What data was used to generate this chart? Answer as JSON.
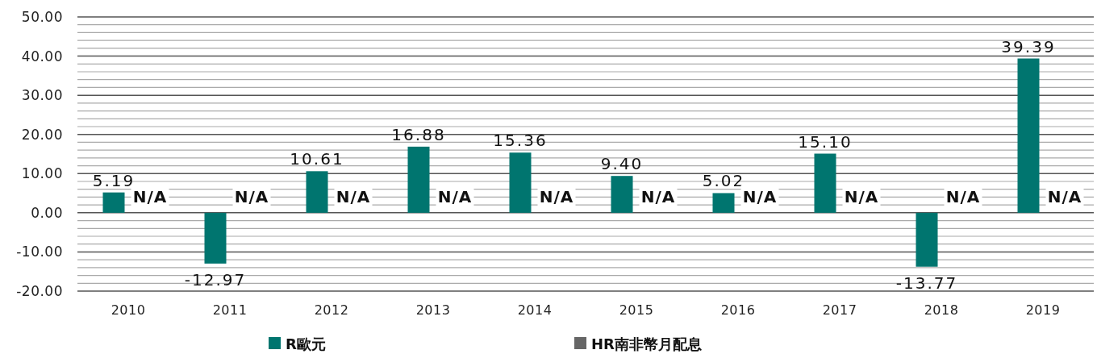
{
  "chart_data": {
    "type": "bar",
    "categories": [
      "2010",
      "2011",
      "2012",
      "2013",
      "2014",
      "2015",
      "2016",
      "2017",
      "2018",
      "2019"
    ],
    "series": [
      {
        "name": "R歐元",
        "color": "#00756f",
        "values": [
          5.19,
          -12.97,
          10.61,
          16.88,
          15.36,
          9.4,
          5.02,
          15.1,
          -13.77,
          39.39
        ],
        "value_labels": [
          "5.19",
          "-12.97",
          "10.61",
          "16.88",
          "15.36",
          "9.40",
          "5.02",
          "15.10",
          "-13.77",
          "39.39"
        ]
      },
      {
        "name": "HR南非幣月配息",
        "color": "#666666",
        "values": [
          null,
          null,
          null,
          null,
          null,
          null,
          null,
          null,
          null,
          null
        ],
        "value_labels": [
          "N/A",
          "N/A",
          "N/A",
          "N/A",
          "N/A",
          "N/A",
          "N/A",
          "N/A",
          "N/A",
          "N/A"
        ]
      }
    ],
    "ylim": [
      -20,
      50
    ],
    "yticks": [
      {
        "value": -20,
        "label": "-20.00"
      },
      {
        "value": -18,
        "label": null
      },
      {
        "value": -16,
        "label": null
      },
      {
        "value": -14,
        "label": null
      },
      {
        "value": -12,
        "label": null
      },
      {
        "value": -10,
        "label": "-10.00"
      },
      {
        "value": -8,
        "label": null
      },
      {
        "value": -6,
        "label": null
      },
      {
        "value": -4,
        "label": null
      },
      {
        "value": -2,
        "label": null
      },
      {
        "value": 0,
        "label": "0.00"
      },
      {
        "value": 2,
        "label": null
      },
      {
        "value": 4,
        "label": null
      },
      {
        "value": 6,
        "label": null
      },
      {
        "value": 8,
        "label": null
      },
      {
        "value": 10,
        "label": "10.00"
      },
      {
        "value": 12,
        "label": null
      },
      {
        "value": 14,
        "label": null
      },
      {
        "value": 16,
        "label": null
      },
      {
        "value": 18,
        "label": null
      },
      {
        "value": 20,
        "label": "20.00"
      },
      {
        "value": 22,
        "label": null
      },
      {
        "value": 24,
        "label": null
      },
      {
        "value": 26,
        "label": null
      },
      {
        "value": 28,
        "label": null
      },
      {
        "value": 30,
        "label": "30.00"
      },
      {
        "value": 32,
        "label": null
      },
      {
        "value": 34,
        "label": null
      },
      {
        "value": 36,
        "label": null
      },
      {
        "value": 38,
        "label": null
      },
      {
        "value": 40,
        "label": "40.00"
      },
      {
        "value": 42,
        "label": null
      },
      {
        "value": 44,
        "label": null
      },
      {
        "value": 46,
        "label": null
      },
      {
        "value": 48,
        "label": null
      },
      {
        "value": 50,
        "label": "50.00"
      }
    ],
    "grid": "y",
    "legend": "bottom"
  }
}
